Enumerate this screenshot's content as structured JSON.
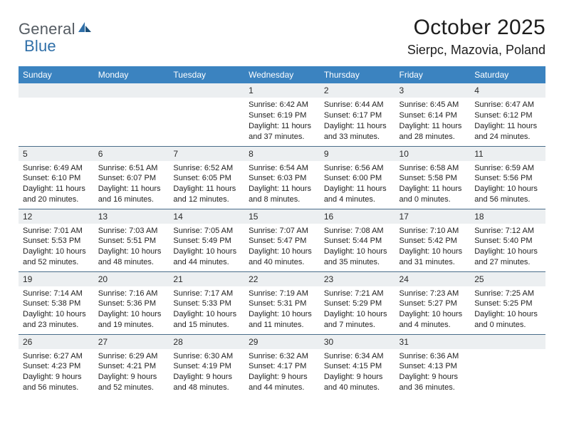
{
  "logo": {
    "word1": "General",
    "word2": "Blue"
  },
  "title": "October 2025",
  "location": "Sierpc, Mazovia, Poland",
  "colors": {
    "header_bg": "#3b83c0",
    "header_text": "#ffffff",
    "divider": "#4a6d8a",
    "daynum_bg": "#eceff1",
    "text": "#222222",
    "logo_gray": "#555c63",
    "logo_blue": "#2f6fa8"
  },
  "day_names": [
    "Sunday",
    "Monday",
    "Tuesday",
    "Wednesday",
    "Thursday",
    "Friday",
    "Saturday"
  ],
  "weeks": [
    [
      null,
      null,
      null,
      {
        "n": "1",
        "sr": "6:42 AM",
        "ss": "6:19 PM",
        "dl": "11 hours and 37 minutes."
      },
      {
        "n": "2",
        "sr": "6:44 AM",
        "ss": "6:17 PM",
        "dl": "11 hours and 33 minutes."
      },
      {
        "n": "3",
        "sr": "6:45 AM",
        "ss": "6:14 PM",
        "dl": "11 hours and 28 minutes."
      },
      {
        "n": "4",
        "sr": "6:47 AM",
        "ss": "6:12 PM",
        "dl": "11 hours and 24 minutes."
      }
    ],
    [
      {
        "n": "5",
        "sr": "6:49 AM",
        "ss": "6:10 PM",
        "dl": "11 hours and 20 minutes."
      },
      {
        "n": "6",
        "sr": "6:51 AM",
        "ss": "6:07 PM",
        "dl": "11 hours and 16 minutes."
      },
      {
        "n": "7",
        "sr": "6:52 AM",
        "ss": "6:05 PM",
        "dl": "11 hours and 12 minutes."
      },
      {
        "n": "8",
        "sr": "6:54 AM",
        "ss": "6:03 PM",
        "dl": "11 hours and 8 minutes."
      },
      {
        "n": "9",
        "sr": "6:56 AM",
        "ss": "6:00 PM",
        "dl": "11 hours and 4 minutes."
      },
      {
        "n": "10",
        "sr": "6:58 AM",
        "ss": "5:58 PM",
        "dl": "11 hours and 0 minutes."
      },
      {
        "n": "11",
        "sr": "6:59 AM",
        "ss": "5:56 PM",
        "dl": "10 hours and 56 minutes."
      }
    ],
    [
      {
        "n": "12",
        "sr": "7:01 AM",
        "ss": "5:53 PM",
        "dl": "10 hours and 52 minutes."
      },
      {
        "n": "13",
        "sr": "7:03 AM",
        "ss": "5:51 PM",
        "dl": "10 hours and 48 minutes."
      },
      {
        "n": "14",
        "sr": "7:05 AM",
        "ss": "5:49 PM",
        "dl": "10 hours and 44 minutes."
      },
      {
        "n": "15",
        "sr": "7:07 AM",
        "ss": "5:47 PM",
        "dl": "10 hours and 40 minutes."
      },
      {
        "n": "16",
        "sr": "7:08 AM",
        "ss": "5:44 PM",
        "dl": "10 hours and 35 minutes."
      },
      {
        "n": "17",
        "sr": "7:10 AM",
        "ss": "5:42 PM",
        "dl": "10 hours and 31 minutes."
      },
      {
        "n": "18",
        "sr": "7:12 AM",
        "ss": "5:40 PM",
        "dl": "10 hours and 27 minutes."
      }
    ],
    [
      {
        "n": "19",
        "sr": "7:14 AM",
        "ss": "5:38 PM",
        "dl": "10 hours and 23 minutes."
      },
      {
        "n": "20",
        "sr": "7:16 AM",
        "ss": "5:36 PM",
        "dl": "10 hours and 19 minutes."
      },
      {
        "n": "21",
        "sr": "7:17 AM",
        "ss": "5:33 PM",
        "dl": "10 hours and 15 minutes."
      },
      {
        "n": "22",
        "sr": "7:19 AM",
        "ss": "5:31 PM",
        "dl": "10 hours and 11 minutes."
      },
      {
        "n": "23",
        "sr": "7:21 AM",
        "ss": "5:29 PM",
        "dl": "10 hours and 7 minutes."
      },
      {
        "n": "24",
        "sr": "7:23 AM",
        "ss": "5:27 PM",
        "dl": "10 hours and 4 minutes."
      },
      {
        "n": "25",
        "sr": "7:25 AM",
        "ss": "5:25 PM",
        "dl": "10 hours and 0 minutes."
      }
    ],
    [
      {
        "n": "26",
        "sr": "6:27 AM",
        "ss": "4:23 PM",
        "dl": "9 hours and 56 minutes."
      },
      {
        "n": "27",
        "sr": "6:29 AM",
        "ss": "4:21 PM",
        "dl": "9 hours and 52 minutes."
      },
      {
        "n": "28",
        "sr": "6:30 AM",
        "ss": "4:19 PM",
        "dl": "9 hours and 48 minutes."
      },
      {
        "n": "29",
        "sr": "6:32 AM",
        "ss": "4:17 PM",
        "dl": "9 hours and 44 minutes."
      },
      {
        "n": "30",
        "sr": "6:34 AM",
        "ss": "4:15 PM",
        "dl": "9 hours and 40 minutes."
      },
      {
        "n": "31",
        "sr": "6:36 AM",
        "ss": "4:13 PM",
        "dl": "9 hours and 36 minutes."
      },
      null
    ]
  ],
  "labels": {
    "sunrise": "Sunrise:",
    "sunset": "Sunset:",
    "daylight": "Daylight:"
  }
}
